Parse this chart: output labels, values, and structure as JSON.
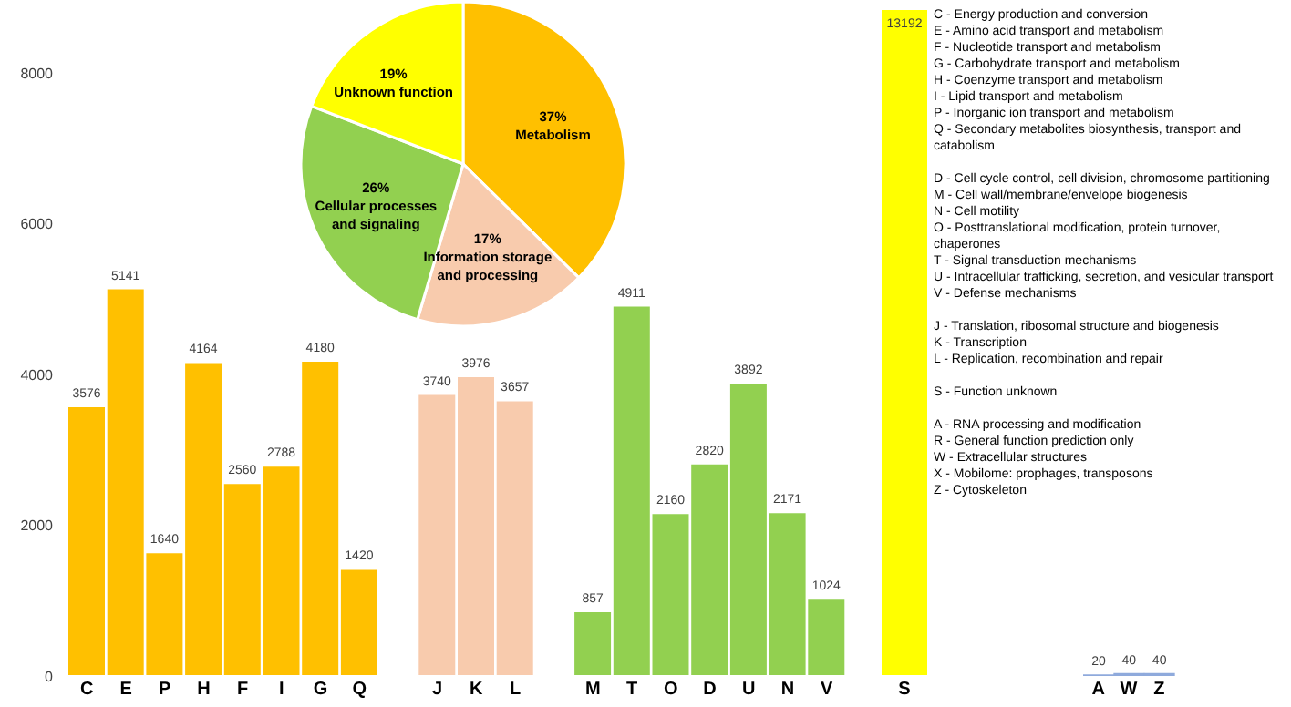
{
  "chart_data": [
    {
      "type": "bar",
      "categories": [
        "C",
        "E",
        "P",
        "H",
        "F",
        "I",
        "G",
        "Q",
        null,
        "J",
        "K",
        "L",
        null,
        "M",
        "T",
        "O",
        "D",
        "U",
        "N",
        "V"
      ],
      "values": [
        3576,
        5141,
        1640,
        4164,
        2560,
        2788,
        4180,
        1420,
        null,
        3740,
        3976,
        3657,
        null,
        857,
        4911,
        2160,
        2820,
        3892,
        2171,
        1024
      ],
      "colors": [
        "#ffc000",
        "#ffc000",
        "#ffc000",
        "#ffc000",
        "#ffc000",
        "#ffc000",
        "#ffc000",
        "#ffc000",
        null,
        "#f8cbad",
        "#f8cbad",
        "#f8cbad",
        null,
        "#92d050",
        "#92d050",
        "#92d050",
        "#92d050",
        "#92d050",
        "#92d050",
        "#92d050"
      ],
      "ylim": [
        0,
        8000
      ],
      "yticks": [
        0,
        2000,
        4000,
        6000,
        8000
      ],
      "data_labels": true
    },
    {
      "type": "bar",
      "categories": [
        "S"
      ],
      "values": [
        13192
      ],
      "colors": [
        "#ffff00"
      ],
      "data_labels": true,
      "tick_labels": "x"
    },
    {
      "type": "bar",
      "categories": [
        "A",
        "W",
        "Z"
      ],
      "values": [
        20,
        40,
        40
      ],
      "colors": [
        "#8faadc",
        "#8faadc",
        "#8faadc"
      ],
      "ylim": [
        0,
        8000
      ],
      "data_labels": true,
      "tick_labels": "x"
    },
    {
      "type": "pie",
      "categories": [
        "Metabolism",
        "Information storage and processing",
        "Cellular processes and signaling",
        "Unknown function"
      ],
      "values": [
        37,
        17,
        26,
        19
      ],
      "colors": [
        "#ffc000",
        "#f8cbad",
        "#92d050",
        "#ffff00"
      ],
      "value_labels": [
        "37%",
        "17%",
        "26%",
        "19%"
      ]
    },
    {
      "type": "other",
      "annotations": [
        "C - Energy production and conversion\nE - Amino acid transport and metabolism\nF - Nucleotide transport and metabolism\nG - Carbohydrate transport and metabolism\nH - Coenzyme transport and metabolism\nI - Lipid transport and metabolism\nP - Inorganic ion transport and metabolism\nQ - Secondary metabolites biosynthesis, transport and catabolism",
        "D - Cell cycle control, cell division, chromosome partitioning\nM - Cell wall/membrane/envelope biogenesis\nN - Cell motility\nO - Posttranslational modification, protein turnover, chaperones\nT - Signal transduction mechanisms\nU - Intracellular trafficking, secretion, and vesicular transport\nV - Defense mechanisms",
        "J - Translation, ribosomal structure and biogenesis\nK - Transcription\nL - Replication, recombination and repair",
        "S - Function unknown",
        "A - RNA processing and modification\nR - General function prediction only\nW - Extracellular structures\nX - Mobilome: prophages, transposons\nZ - Cytoskeleton"
      ]
    }
  ]
}
